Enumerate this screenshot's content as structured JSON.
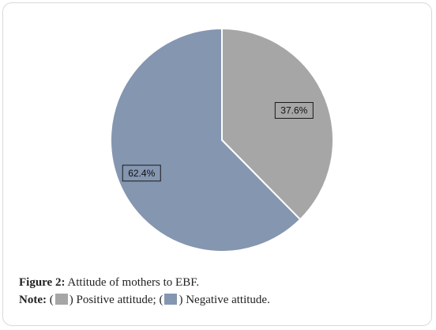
{
  "chart_data": {
    "type": "pie",
    "categories": [
      "Positive attitude",
      "Negative attitude"
    ],
    "values": [
      37.6,
      62.4
    ],
    "data_labels": [
      "37.6%",
      "62.4%"
    ],
    "colors": [
      "#a6a6a6",
      "#8496b0"
    ],
    "start_angle": "12 o'clock, clockwise",
    "legend": "in caption note"
  },
  "caption": {
    "figure_label": "Figure 2:",
    "figure_text": "Attitude of mothers to EBF.",
    "note_label": "Note:",
    "open_paren_1": "(",
    "positive_text": ") Positive attitude; (",
    "negative_text": ") Negative attitude."
  }
}
